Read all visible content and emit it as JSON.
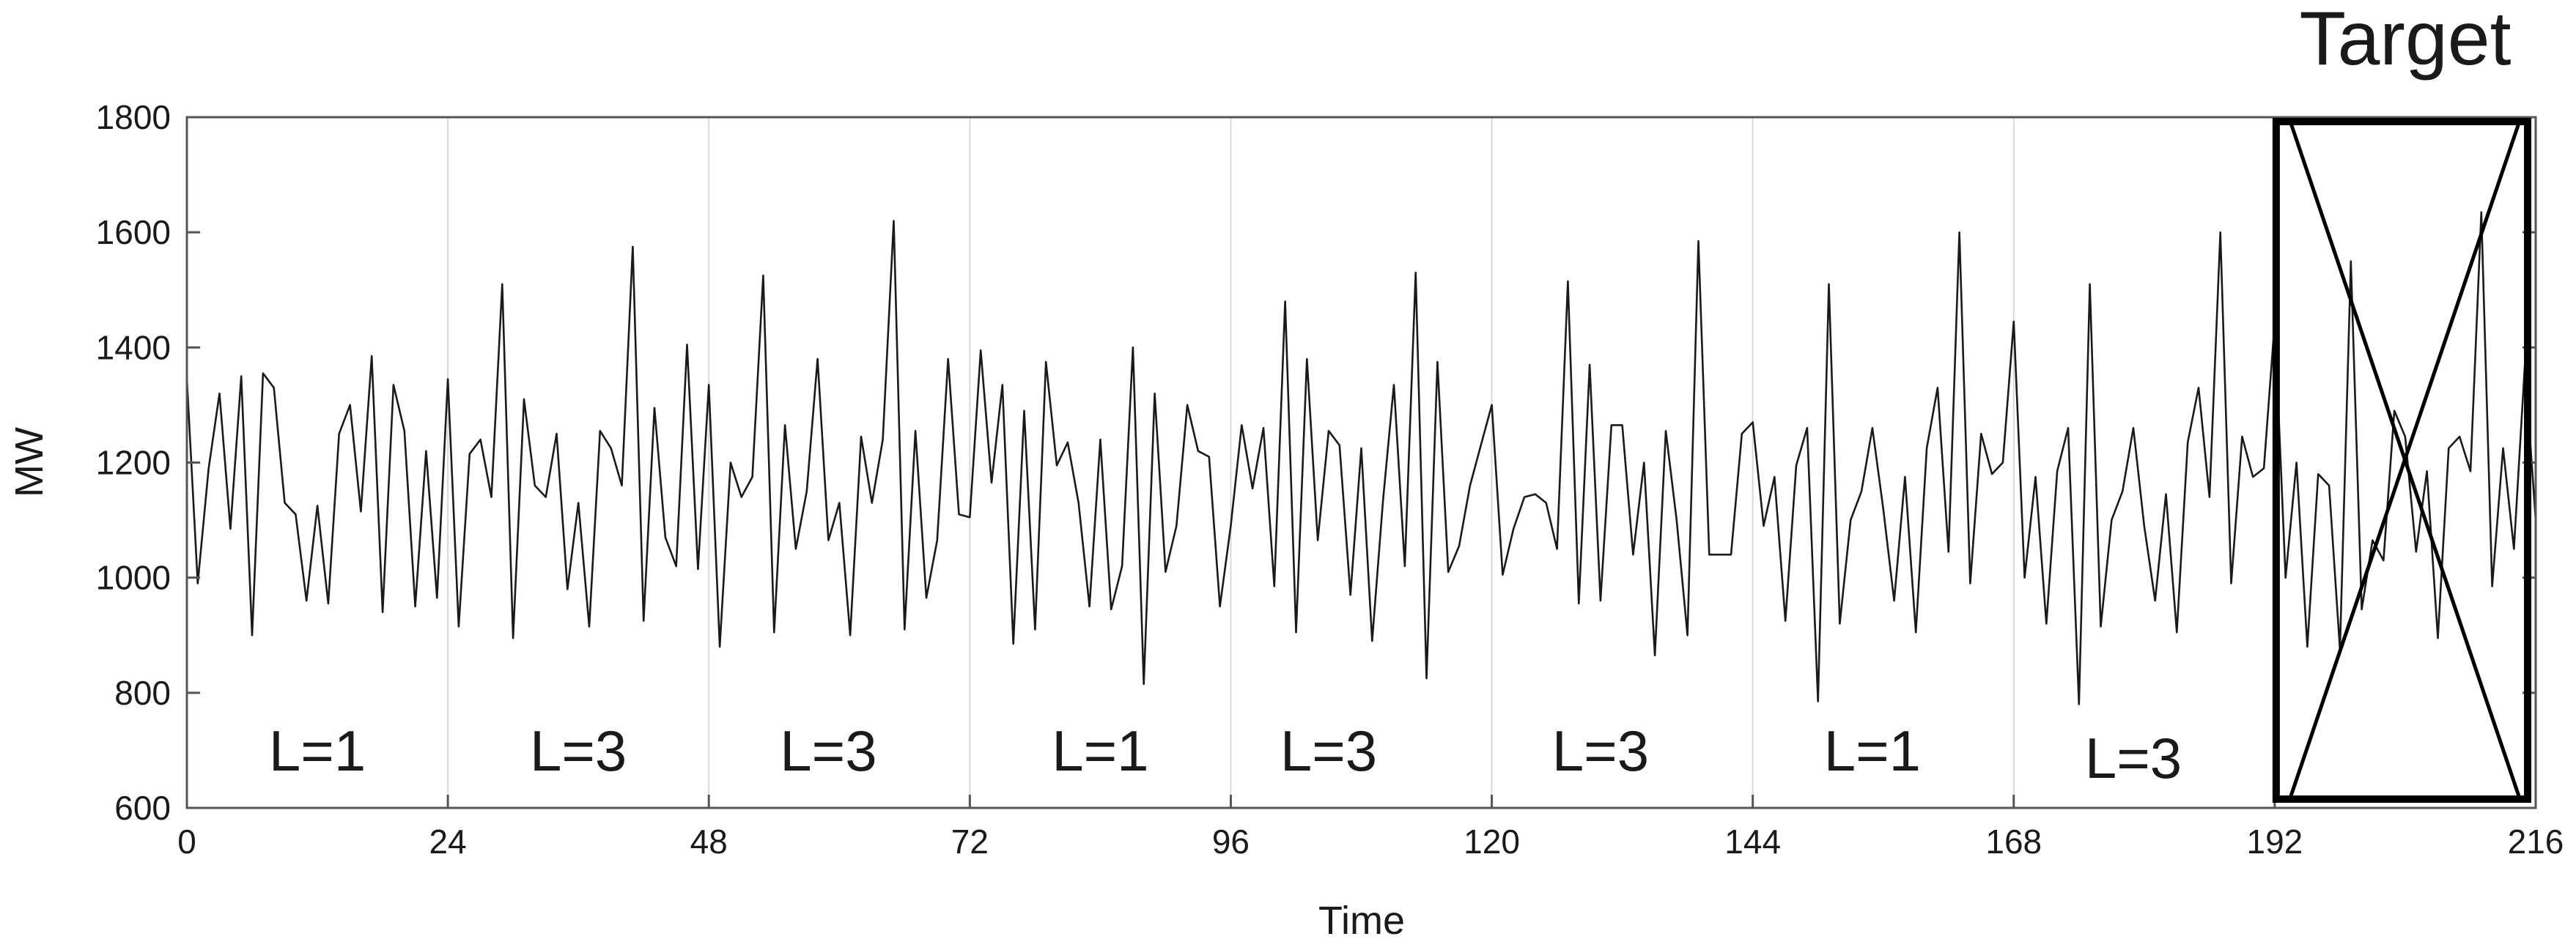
{
  "chart_data": {
    "type": "line",
    "title": "",
    "xlabel": "Time",
    "ylabel": "MW",
    "xlim": [
      0,
      216
    ],
    "ylim": [
      600,
      1800
    ],
    "xticks": [
      0,
      24,
      48,
      72,
      96,
      120,
      144,
      168,
      192,
      216
    ],
    "yticks": [
      600,
      800,
      1000,
      1200,
      1400,
      1600,
      1800
    ],
    "xtick_labels": [
      "0",
      "24",
      "48",
      "72",
      "96",
      "120",
      "144",
      "168",
      "192",
      "216"
    ],
    "ytick_labels": [
      "600",
      "800",
      "1000",
      "1200",
      "1400",
      "1600",
      "1800"
    ],
    "grid": "vertical lines at x ticks",
    "series": [
      {
        "color": "#1a1a1a",
        "x": [
          0,
          1,
          2,
          3,
          4,
          5,
          6,
          7,
          8,
          9,
          10,
          11,
          12,
          13,
          14,
          15,
          16,
          17,
          18,
          19,
          20,
          21,
          22,
          23,
          24,
          25,
          26,
          27,
          28,
          29,
          30,
          31,
          32,
          33,
          34,
          35,
          36,
          37,
          38,
          39,
          40,
          41,
          42,
          43,
          44,
          45,
          46,
          47,
          48,
          49,
          50,
          51,
          52,
          53,
          54,
          55,
          56,
          57,
          58,
          59,
          60,
          61,
          62,
          63,
          64,
          65,
          66,
          67,
          68,
          69,
          70,
          71,
          72,
          73,
          74,
          75,
          76,
          77,
          78,
          79,
          80,
          81,
          82,
          83,
          84,
          85,
          86,
          87,
          88,
          89,
          90,
          91,
          92,
          93,
          94,
          95,
          96,
          97,
          98,
          99,
          100,
          101,
          102,
          103,
          104,
          105,
          106,
          107,
          108,
          109,
          110,
          111,
          112,
          113,
          114,
          115,
          116,
          117,
          118,
          119,
          120,
          121,
          122,
          123,
          124,
          125,
          126,
          127,
          128,
          129,
          130,
          131,
          132,
          133,
          134,
          135,
          136,
          137,
          138,
          139,
          140,
          141,
          142,
          143,
          144,
          145,
          146,
          147,
          148,
          149,
          150,
          151,
          152,
          153,
          154,
          155,
          156,
          157,
          158,
          159,
          160,
          161,
          162,
          163,
          164,
          165,
          166,
          167,
          168,
          169,
          170,
          171,
          172,
          173,
          174,
          175,
          176,
          177,
          178,
          179,
          180,
          181,
          182,
          183,
          184,
          185,
          186,
          187,
          188,
          189,
          190,
          191,
          192,
          193,
          194,
          195,
          196,
          197,
          198,
          199,
          200,
          201,
          202,
          203,
          204,
          205,
          206,
          207,
          208,
          209,
          210,
          211,
          212,
          213,
          214,
          215,
          216
        ],
        "y": [
          1345,
          990,
          1190,
          1320,
          1085,
          1350,
          900,
          1355,
          1330,
          1130,
          1110,
          960,
          1125,
          955,
          1250,
          1300,
          1115,
          1385,
          940,
          1335,
          1255,
          950,
          1220,
          965,
          1345,
          915,
          1215,
          1240,
          1140,
          1510,
          895,
          1310,
          1160,
          1140,
          1250,
          980,
          1130,
          915,
          1255,
          1225,
          1160,
          1575,
          925,
          1295,
          1070,
          1020,
          1405,
          1015,
          1335,
          880,
          1200,
          1140,
          1175,
          1525,
          905,
          1265,
          1050,
          1150,
          1380,
          1065,
          1130,
          900,
          1245,
          1130,
          1240,
          1620,
          910,
          1255,
          965,
          1065,
          1380,
          1110,
          1105,
          1395,
          1165,
          1335,
          885,
          1290,
          910,
          1375,
          1195,
          1235,
          1130,
          950,
          1240,
          945,
          1020,
          1400,
          815,
          1320,
          1010,
          1090,
          1300,
          1220,
          1210,
          950,
          1090,
          1265,
          1155,
          1260,
          985,
          1480,
          905,
          1380,
          1065,
          1255,
          1230,
          970,
          1225,
          890,
          1135,
          1335,
          1020,
          1530,
          825,
          1375,
          1010,
          1055,
          1160,
          1230,
          1300,
          1005,
          1085,
          1140,
          1145,
          1130,
          1050,
          1515,
          955,
          1370,
          960,
          1265,
          1265,
          1040,
          1200,
          865,
          1255,
          1100,
          900,
          1585,
          1040,
          1040,
          1040,
          1250,
          1270,
          1090,
          1175,
          925,
          1195,
          1260,
          785,
          1510,
          920,
          1100,
          1150,
          1260,
          1120,
          960,
          1175,
          905,
          1225,
          1330,
          1045,
          1600,
          990,
          1250,
          1180,
          1200,
          1445,
          1000,
          1175,
          920,
          1185,
          1260,
          780,
          1510,
          915,
          1100,
          1150,
          1260,
          1090,
          960,
          1145,
          905,
          1235,
          1330,
          1140,
          1600,
          990,
          1245,
          1175,
          1190,
          1445,
          1000,
          1200,
          880,
          1180,
          1160,
          875,
          1550,
          945,
          1065,
          1030,
          1290,
          1245,
          1045,
          1185,
          895,
          1225,
          1245,
          1185,
          1635,
          985,
          1225,
          1050,
          1370,
          1100
        ]
      }
    ],
    "annotations": {
      "segment_labels": [
        {
          "text": "L=1",
          "x": 12
        },
        {
          "text": "L=3",
          "x": 36
        },
        {
          "text": "L=3",
          "x": 59
        },
        {
          "text": "L=1",
          "x": 84
        },
        {
          "text": "L=3",
          "x": 105
        },
        {
          "text": "L=3",
          "x": 130
        },
        {
          "text": "L=1",
          "x": 155
        },
        {
          "text": "L=3",
          "x": 179
        }
      ],
      "target_label": "Target",
      "target_x_range": [
        192,
        215.8
      ]
    }
  }
}
